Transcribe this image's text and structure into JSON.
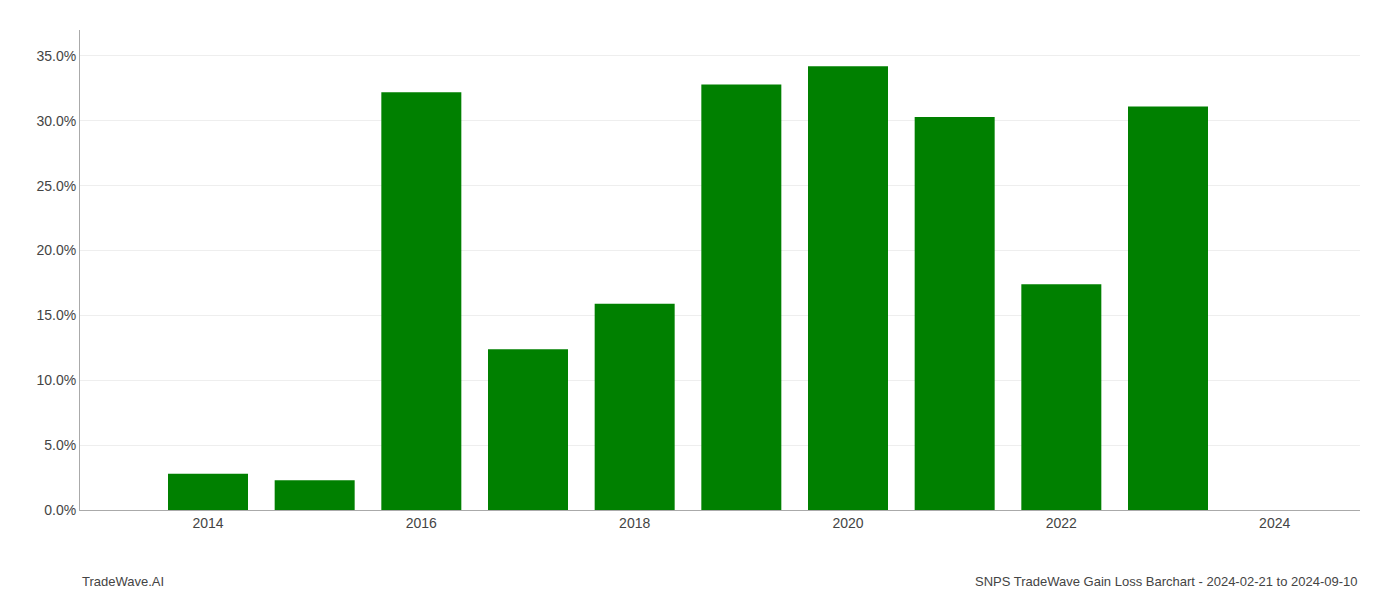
{
  "chart_data": {
    "type": "bar",
    "x": [
      2014,
      2015,
      2016,
      2017,
      2018,
      2019,
      2020,
      2021,
      2022,
      2023
    ],
    "values": [
      0.028,
      0.023,
      0.322,
      0.124,
      0.159,
      0.328,
      0.342,
      0.303,
      0.174,
      0.311
    ],
    "color": "#008000",
    "ylim": [
      0,
      0.37
    ],
    "yticks": [
      {
        "value": 0.0,
        "label": "0.0%"
      },
      {
        "value": 0.05,
        "label": "5.0%"
      },
      {
        "value": 0.1,
        "label": "10.0%"
      },
      {
        "value": 0.15,
        "label": "15.0%"
      },
      {
        "value": 0.2,
        "label": "20.0%"
      },
      {
        "value": 0.25,
        "label": "25.0%"
      },
      {
        "value": 0.3,
        "label": "30.0%"
      },
      {
        "value": 0.35,
        "label": "35.0%"
      }
    ],
    "xlim": [
      2012.8,
      2024.8
    ],
    "xticks": [
      2014,
      2016,
      2018,
      2020,
      2022,
      2024
    ],
    "grid": true,
    "annotations": [
      "TradeWave.AI",
      "SNPS TradeWave Gain Loss Barchart - 2024-02-21 to 2024-09-10"
    ]
  }
}
